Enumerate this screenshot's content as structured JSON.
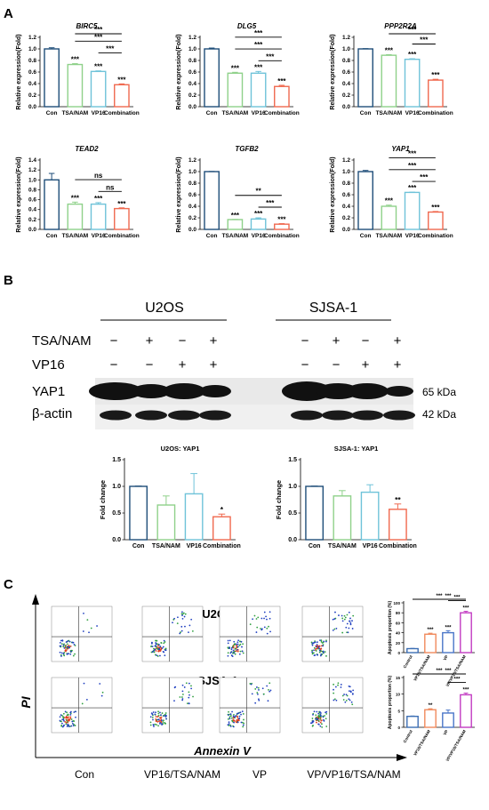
{
  "panel_labels": [
    "A",
    "B",
    "C"
  ],
  "colors": {
    "con": "#1f4e79",
    "tsa": "#8fd18a",
    "vp16": "#6fc3d9",
    "comb": "#f0694f",
    "ctl_c": "#3c6eb4",
    "vp16tsa_c": "#f08a5d",
    "vp_c": "#4a76c8",
    "all_c": "#c23bc2"
  },
  "chart_data": [
    {
      "type": "bar",
      "panel": "A",
      "title": "BIRC5",
      "ylabel": "Relative expression(Fold)",
      "categories": [
        "Con",
        "TSA/NAM",
        "VP16",
        "Combination"
      ],
      "values": [
        1.0,
        0.73,
        0.61,
        0.38
      ],
      "errors": [
        0.02,
        0.015,
        0.01,
        0.015
      ],
      "ylim": [
        0,
        1.2
      ],
      "yticks": [
        "0.0",
        "0.2",
        "0.4",
        "0.6",
        "0.8",
        "1.0",
        "1.2"
      ],
      "stars": [
        "",
        "***",
        "***",
        "***"
      ],
      "brackets": [
        {
          "from": 1,
          "to": 3,
          "label": "***"
        },
        {
          "from": 2,
          "to": 3,
          "label": "***"
        },
        {
          "from": 1,
          "to": 3,
          "label": "***"
        }
      ]
    },
    {
      "type": "bar",
      "panel": "A",
      "title": "DLG5",
      "ylabel": "Relative expression(Fold)",
      "categories": [
        "Con",
        "TSA/NAM",
        "VP16",
        "Combination"
      ],
      "values": [
        1.0,
        0.58,
        0.58,
        0.35
      ],
      "errors": [
        0.015,
        0.015,
        0.03,
        0.02
      ],
      "ylim": [
        0,
        1.2
      ],
      "yticks": [
        "0.0",
        "0.2",
        "0.4",
        "0.6",
        "0.8",
        "1.0",
        "1.2"
      ],
      "stars": [
        "",
        "***",
        "***",
        "***"
      ],
      "brackets": [
        {
          "from": 1,
          "to": 3,
          "label": "***"
        },
        {
          "from": 2,
          "to": 3,
          "label": "***"
        },
        {
          "from": 1,
          "to": 3,
          "label": "***"
        }
      ]
    },
    {
      "type": "bar",
      "panel": "A",
      "title": "PPP2R2A",
      "ylabel": "Relative expression(Fold)",
      "categories": [
        "Con",
        "TSA/NAM",
        "VP16",
        "Combination"
      ],
      "values": [
        1.0,
        0.89,
        0.82,
        0.46
      ],
      "errors": [
        0.005,
        0.01,
        0.01,
        0.015
      ],
      "ylim": [
        0,
        1.2
      ],
      "yticks": [
        "0.0",
        "0.2",
        "0.4",
        "0.6",
        "0.8",
        "1.0",
        "1.2"
      ],
      "stars": [
        "",
        "***",
        "***",
        "***"
      ],
      "brackets": [
        {
          "from": 1,
          "to": 3,
          "label": "***"
        },
        {
          "from": 2,
          "to": 3,
          "label": "***"
        },
        {
          "from": 1,
          "to": 3,
          "label": "***"
        }
      ]
    },
    {
      "type": "bar",
      "panel": "A",
      "title": "TEAD2",
      "ylabel": "Relative expression(Fold)",
      "categories": [
        "Con",
        "TSA/NAM",
        "VP16",
        "Combination"
      ],
      "values": [
        1.0,
        0.51,
        0.51,
        0.42
      ],
      "errors": [
        0.13,
        0.04,
        0.03,
        0.015
      ],
      "ylim": [
        0,
        1.4
      ],
      "yticks": [
        "0.0",
        "0.2",
        "0.4",
        "0.6",
        "0.8",
        "1.0",
        "1.2",
        "1.4"
      ],
      "stars": [
        "",
        "***",
        "***",
        "***"
      ],
      "brackets": [
        {
          "from": 1,
          "to": 3,
          "label": "ns"
        },
        {
          "from": 2,
          "to": 3,
          "label": "ns"
        }
      ]
    },
    {
      "type": "bar",
      "panel": "A",
      "title": "TGFB2",
      "ylabel": "Relative expression(Fold)",
      "categories": [
        "Con",
        "TSA/NAM",
        "VP16",
        "Combination"
      ],
      "values": [
        1.0,
        0.17,
        0.18,
        0.09
      ],
      "errors": [
        0.003,
        0.003,
        0.02,
        0.01
      ],
      "ylim": [
        0,
        1.2
      ],
      "yticks": [
        "0.0",
        "0.2",
        "0.4",
        "0.6",
        "0.8",
        "1.0",
        "1.2"
      ],
      "stars": [
        "",
        "***",
        "***",
        "***"
      ],
      "brackets": [
        {
          "from": 1,
          "to": 3,
          "label": "**"
        },
        {
          "from": 2,
          "to": 3,
          "label": "***"
        }
      ]
    },
    {
      "type": "bar",
      "panel": "A",
      "title": "YAP1",
      "ylabel": "Relative expression(Fold)",
      "categories": [
        "Con",
        "TSA/NAM",
        "VP16",
        "Combination"
      ],
      "values": [
        1.0,
        0.4,
        0.64,
        0.3
      ],
      "errors": [
        0.02,
        0.02,
        0.005,
        0.01
      ],
      "ylim": [
        0,
        1.2
      ],
      "yticks": [
        "0.0",
        "0.2",
        "0.4",
        "0.6",
        "0.8",
        "1.0",
        "1.2"
      ],
      "stars": [
        "",
        "***",
        "***",
        "***"
      ],
      "brackets": [
        {
          "from": 1,
          "to": 3,
          "label": "***"
        },
        {
          "from": 2,
          "to": 3,
          "label": "***"
        },
        {
          "from": 1,
          "to": 3,
          "label": "***"
        }
      ]
    },
    {
      "type": "bar",
      "panel": "B",
      "title": "U2OS: YAP1",
      "ylabel": "Fold change",
      "categories": [
        "Con",
        "TSA/NAM",
        "VP16",
        "Combination"
      ],
      "values": [
        1.0,
        0.65,
        0.86,
        0.43
      ],
      "errors": [
        0.005,
        0.17,
        0.38,
        0.05
      ],
      "ylim": [
        0,
        1.5
      ],
      "yticks": [
        "0.0",
        "0.5",
        "1.0",
        "1.5"
      ],
      "stars": [
        "",
        "",
        "",
        "*"
      ],
      "brackets": []
    },
    {
      "type": "bar",
      "panel": "B",
      "title": "SJSA-1: YAP1",
      "ylabel": "Fold change",
      "categories": [
        "Con",
        "TSA/NAM",
        "VP16",
        "Combination"
      ],
      "values": [
        1.0,
        0.82,
        0.89,
        0.57
      ],
      "errors": [
        0.005,
        0.1,
        0.14,
        0.1
      ],
      "ylim": [
        0,
        1.5
      ],
      "yticks": [
        "0.0",
        "0.5",
        "1.0",
        "1.5"
      ],
      "stars": [
        "",
        "",
        "",
        "**"
      ],
      "brackets": []
    },
    {
      "type": "bar",
      "panel": "C",
      "title": "",
      "ylabel": "Apoptosis proportion (%)",
      "categories": [
        "Control",
        "VP16/TSA/NAM",
        "VP",
        "VP/VP16/TSA/NAM"
      ],
      "values": [
        8,
        37,
        40,
        80
      ],
      "errors": [
        0.5,
        2,
        4,
        3
      ],
      "ylim": [
        0,
        100
      ],
      "yticks": [
        "0",
        "20",
        "40",
        "60",
        "80",
        "100"
      ],
      "stars": [
        "",
        "***",
        "***",
        "***"
      ],
      "brackets": [
        {
          "from": 1,
          "to": 3,
          "label": "***"
        },
        {
          "from": 2,
          "to": 3,
          "label": "***"
        },
        {
          "from": 0,
          "to": 3,
          "label": "***"
        }
      ]
    },
    {
      "type": "bar",
      "panel": "C",
      "title": "",
      "ylabel": "Apoptosis proportion (%)",
      "categories": [
        "Control",
        "VP16/TSA/NAM",
        "VP",
        "VP/VP16/TSA/NAM"
      ],
      "values": [
        3.3,
        5.3,
        4.3,
        9.8
      ],
      "errors": [
        0.1,
        0.3,
        0.9,
        0.5
      ],
      "ylim": [
        0,
        15
      ],
      "yticks": [
        "0",
        "5",
        "10",
        "15"
      ],
      "stars": [
        "",
        "**",
        "",
        "***"
      ],
      "brackets": [
        {
          "from": 1,
          "to": 3,
          "label": "***"
        },
        {
          "from": 2,
          "to": 3,
          "label": "***"
        },
        {
          "from": 0,
          "to": 3,
          "label": "***"
        }
      ]
    }
  ],
  "western": {
    "cell_lines": [
      "U2OS",
      "SJSA-1"
    ],
    "row_labels": [
      "TSA/NAM",
      "VP16"
    ],
    "tsa_signs": [
      "−",
      "+",
      "−",
      "+"
    ],
    "vp16_signs": [
      "−",
      "−",
      "+",
      "+"
    ],
    "proteins": [
      "YAP1",
      "β-actin"
    ],
    "sizes": [
      "65 kDa",
      "42 kDa"
    ]
  },
  "flow": {
    "row_titles": [
      "U2OS",
      "SJSA-1"
    ],
    "col_labels": [
      "Con",
      "VP16/TSA/NAM",
      "VP",
      "VP/VP16/TSA/NAM"
    ],
    "y_axis": "PI",
    "x_axis": "Annexin V"
  }
}
